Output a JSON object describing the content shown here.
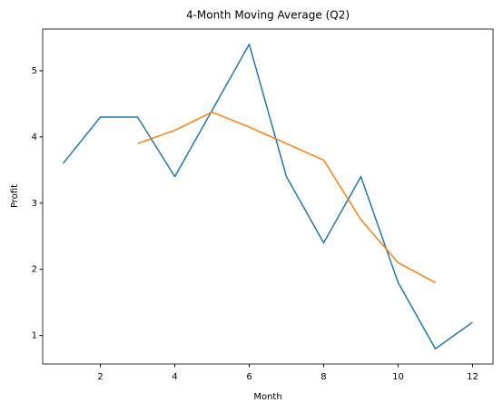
{
  "chart_data": {
    "type": "line",
    "title": "4-Month Moving Average (Q2)",
    "xlabel": "Month",
    "ylabel": "Profit",
    "x": [
      1,
      2,
      3,
      4,
      5,
      6,
      7,
      8,
      9,
      10,
      11,
      12
    ],
    "series": [
      {
        "color": "#1f77b4",
        "values": [
          3.6,
          4.3,
          4.3,
          3.4,
          4.4,
          5.4,
          3.4,
          2.4,
          3.4,
          1.8,
          0.8,
          1.2
        ]
      },
      {
        "color": "#ff7f0e",
        "values": [
          null,
          null,
          3.9,
          4.1,
          4.375,
          4.15,
          3.9,
          3.65,
          2.75,
          2.1,
          1.8,
          null
        ]
      }
    ],
    "xlim": [
      0.45,
      12.55
    ],
    "ylim": [
      0.57,
      5.63
    ],
    "xticks": [
      2,
      4,
      6,
      8,
      10,
      12
    ],
    "yticks": [
      1,
      2,
      3,
      4,
      5
    ],
    "grid": false
  }
}
